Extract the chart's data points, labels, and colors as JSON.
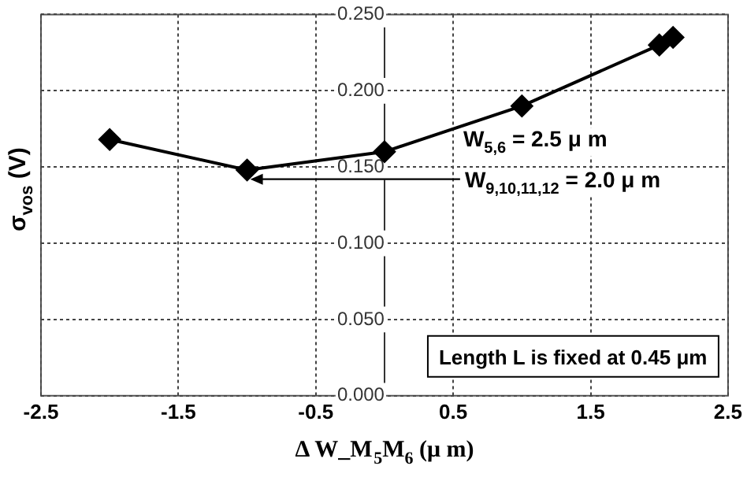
{
  "chart_data": {
    "type": "line",
    "xlabel": "Δ W_M$_{5}$M$_{6}$ (μ m)",
    "ylabel": "σ$_{vos}$ (V)",
    "x": [
      -2,
      -1,
      0,
      1,
      2,
      2.1
    ],
    "series": [
      {
        "color": "#000000",
        "values": [
          0.168,
          0.148,
          0.16,
          0.19,
          0.23,
          0.235
        ]
      }
    ],
    "xlim": [
      -2.5,
      2.5
    ],
    "xticks": [
      -2.5,
      -1.5,
      -0.5,
      0.5,
      1.5,
      2.5
    ],
    "ylim": [
      0,
      0.25
    ],
    "yticks": [
      {
        "value": 0,
        "label": "0.000"
      },
      {
        "value": 0.05,
        "label": "0.050"
      },
      {
        "value": 0.1,
        "label": "0.100"
      },
      {
        "value": 0.15,
        "label": "0.150"
      },
      {
        "value": 0.2,
        "label": "0.200"
      },
      {
        "value": 0.25,
        "label": "0.250"
      }
    ],
    "grid": true,
    "marker": "diamond",
    "line_style": "solid",
    "legend": false,
    "annotations": [
      "W$_{5,6}$ = 2.5 μ m",
      {
        "text": "W$_{9,10,11,12}$ = 2.0 μ m",
        "x": -1,
        "y": 0.142
      },
      "Length L is fixed at 0.45 μm"
    ]
  }
}
